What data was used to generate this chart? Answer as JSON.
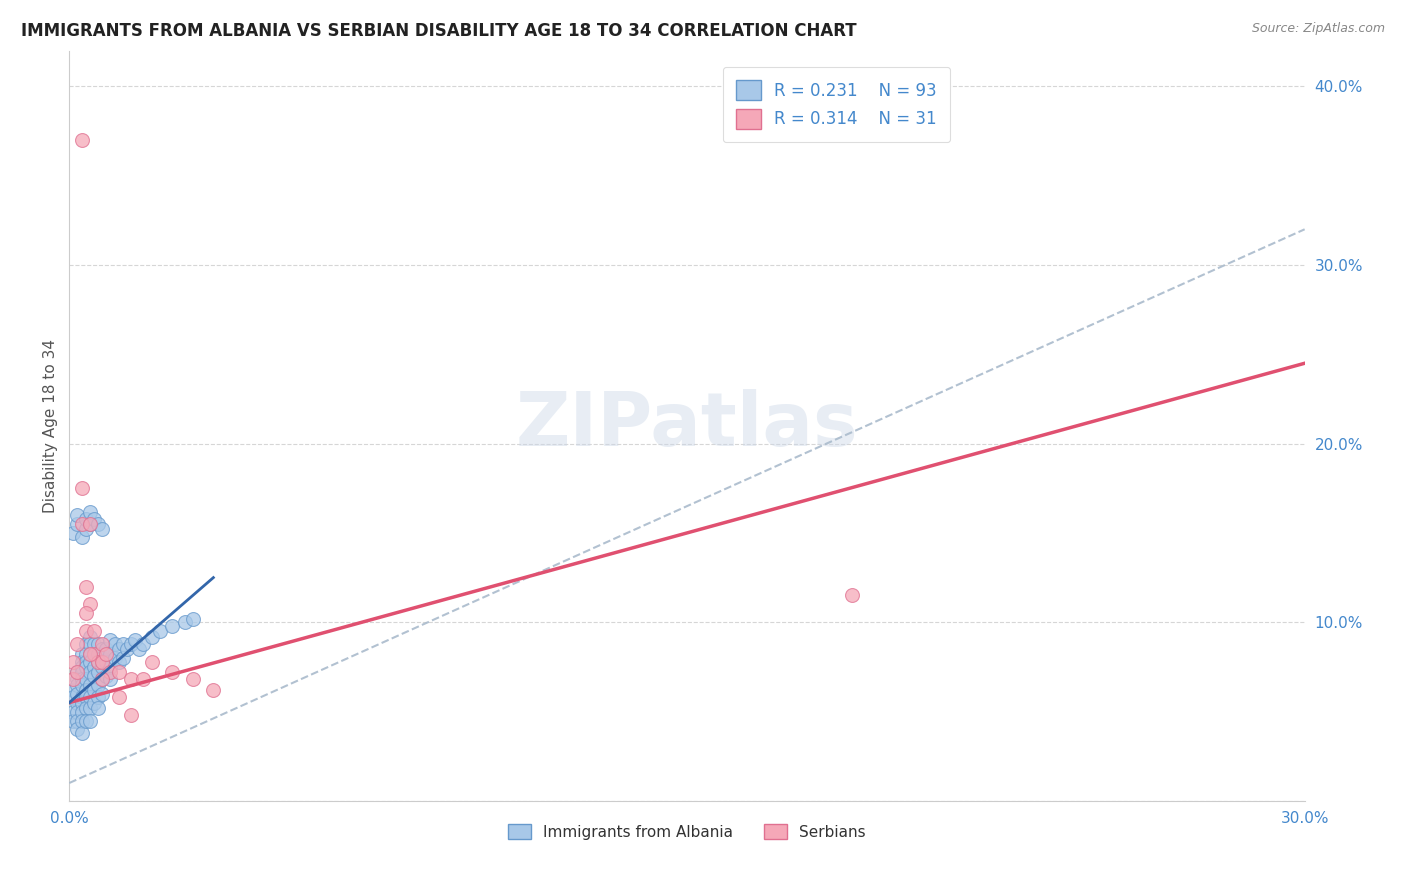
{
  "title": "IMMIGRANTS FROM ALBANIA VS SERBIAN DISABILITY AGE 18 TO 34 CORRELATION CHART",
  "source": "Source: ZipAtlas.com",
  "ylabel": "Disability Age 18 to 34",
  "xlim": [
    0.0,
    0.3
  ],
  "ylim": [
    0.0,
    0.42
  ],
  "albania_color": "#a8c8e8",
  "serbia_color": "#f5a8b8",
  "albania_edge": "#6699cc",
  "serbia_edge": "#e07090",
  "trend_albania_color": "#3366aa",
  "trend_serbia_color": "#e05070",
  "trend_gray_color": "#aabbcc",
  "watermark_color": "#ccd8e8",
  "legend_r_albania": "0.231",
  "legend_n_albania": "93",
  "legend_r_serbia": "0.314",
  "legend_n_serbia": "31",
  "legend_label_albania": "Immigrants from Albania",
  "legend_label_serbia": "Serbians",
  "legend_text_color": "#4488cc",
  "tick_color": "#4488cc",
  "title_color": "#222222",
  "source_color": "#888888",
  "grid_color": "#cccccc",
  "albania_x": [
    0.001,
    0.001,
    0.001,
    0.001,
    0.002,
    0.002,
    0.002,
    0.002,
    0.002,
    0.002,
    0.002,
    0.002,
    0.003,
    0.003,
    0.003,
    0.003,
    0.003,
    0.003,
    0.003,
    0.003,
    0.003,
    0.003,
    0.003,
    0.004,
    0.004,
    0.004,
    0.004,
    0.004,
    0.004,
    0.004,
    0.004,
    0.004,
    0.005,
    0.005,
    0.005,
    0.005,
    0.005,
    0.005,
    0.005,
    0.005,
    0.005,
    0.006,
    0.006,
    0.006,
    0.006,
    0.006,
    0.006,
    0.007,
    0.007,
    0.007,
    0.007,
    0.007,
    0.007,
    0.007,
    0.008,
    0.008,
    0.008,
    0.008,
    0.008,
    0.009,
    0.009,
    0.009,
    0.01,
    0.01,
    0.01,
    0.01,
    0.011,
    0.011,
    0.012,
    0.012,
    0.013,
    0.013,
    0.014,
    0.015,
    0.016,
    0.017,
    0.018,
    0.02,
    0.022,
    0.025,
    0.028,
    0.03,
    0.001,
    0.002,
    0.002,
    0.003,
    0.004,
    0.004,
    0.005,
    0.005,
    0.006,
    0.007,
    0.008
  ],
  "albania_y": [
    0.062,
    0.058,
    0.05,
    0.045,
    0.072,
    0.068,
    0.065,
    0.06,
    0.055,
    0.05,
    0.045,
    0.04,
    0.082,
    0.078,
    0.075,
    0.072,
    0.068,
    0.065,
    0.058,
    0.055,
    0.05,
    0.045,
    0.038,
    0.088,
    0.082,
    0.078,
    0.075,
    0.068,
    0.062,
    0.058,
    0.052,
    0.045,
    0.092,
    0.088,
    0.082,
    0.078,
    0.072,
    0.065,
    0.058,
    0.052,
    0.045,
    0.088,
    0.082,
    0.075,
    0.07,
    0.062,
    0.055,
    0.088,
    0.082,
    0.078,
    0.072,
    0.065,
    0.058,
    0.052,
    0.085,
    0.08,
    0.075,
    0.068,
    0.06,
    0.085,
    0.078,
    0.07,
    0.09,
    0.082,
    0.075,
    0.068,
    0.088,
    0.08,
    0.085,
    0.078,
    0.088,
    0.08,
    0.085,
    0.088,
    0.09,
    0.085,
    0.088,
    0.092,
    0.095,
    0.098,
    0.1,
    0.102,
    0.15,
    0.155,
    0.16,
    0.148,
    0.152,
    0.158,
    0.155,
    0.162,
    0.158,
    0.155,
    0.152
  ],
  "serbia_x": [
    0.001,
    0.001,
    0.002,
    0.002,
    0.003,
    0.003,
    0.004,
    0.004,
    0.005,
    0.005,
    0.006,
    0.006,
    0.007,
    0.008,
    0.008,
    0.009,
    0.01,
    0.012,
    0.015,
    0.018,
    0.02,
    0.025,
    0.03,
    0.035,
    0.19,
    0.003,
    0.004,
    0.005,
    0.008,
    0.012,
    0.015
  ],
  "serbia_y": [
    0.078,
    0.068,
    0.088,
    0.072,
    0.175,
    0.155,
    0.12,
    0.095,
    0.155,
    0.11,
    0.095,
    0.082,
    0.078,
    0.088,
    0.078,
    0.082,
    0.072,
    0.072,
    0.068,
    0.068,
    0.078,
    0.072,
    0.068,
    0.062,
    0.115,
    0.37,
    0.105,
    0.082,
    0.068,
    0.058,
    0.048
  ],
  "trend_albania_x0": 0.0,
  "trend_albania_y0": 0.055,
  "trend_albania_x1": 0.035,
  "trend_albania_y1": 0.125,
  "trend_gray_x0": 0.0,
  "trend_gray_y0": 0.01,
  "trend_gray_x1": 0.3,
  "trend_gray_y1": 0.32,
  "trend_serbia_x0": 0.0,
  "trend_serbia_y0": 0.055,
  "trend_serbia_x1": 0.3,
  "trend_serbia_y1": 0.245
}
